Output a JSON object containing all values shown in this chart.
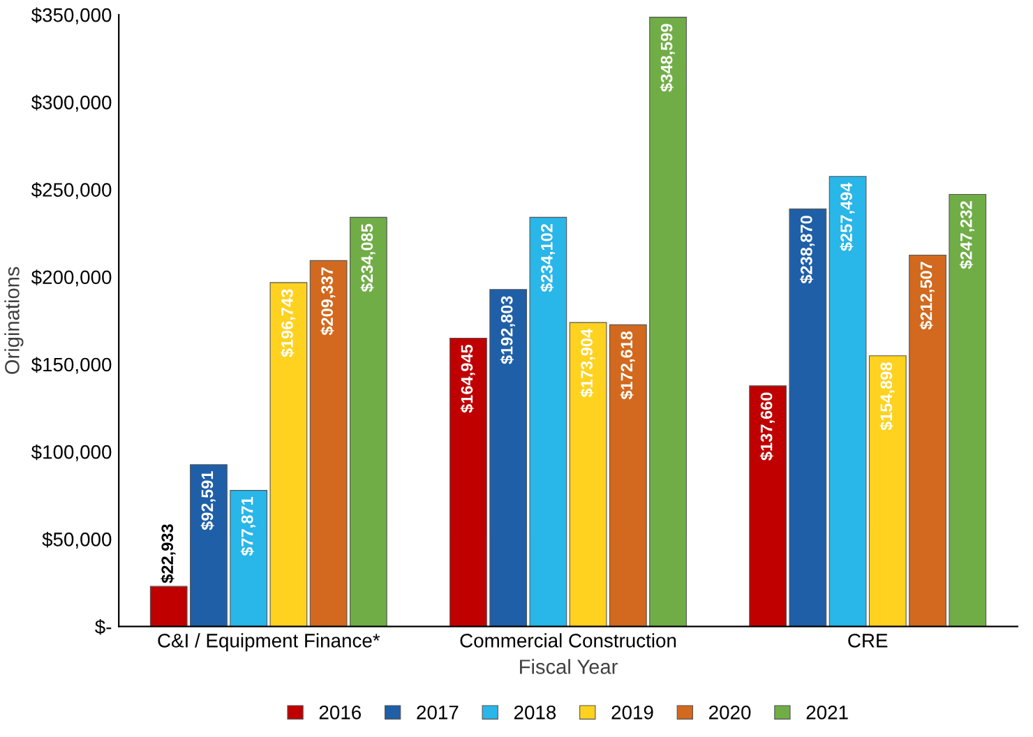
{
  "chart_data": {
    "type": "bar",
    "xlabel": "Fiscal Year",
    "ylabel": "Originations",
    "categories": [
      "C&I / Equipment Finance*",
      "Commercial Construction",
      "CRE"
    ],
    "series": [
      {
        "name": "2016",
        "color": "#c00000",
        "values": [
          22933,
          164945,
          137660
        ],
        "value_labels": [
          "$22,933",
          "$164,945",
          "$137,660"
        ]
      },
      {
        "name": "2017",
        "color": "#1f5fa8",
        "values": [
          92591,
          192803,
          238870
        ],
        "value_labels": [
          "$92,591",
          "$192,803",
          "$238,870"
        ]
      },
      {
        "name": "2018",
        "color": "#29b6e8",
        "values": [
          77871,
          234102,
          257494
        ],
        "value_labels": [
          "$77,871",
          "$234,102",
          "$257,494"
        ]
      },
      {
        "name": "2019",
        "color": "#ffd21f",
        "values": [
          196743,
          173904,
          154898
        ],
        "value_labels": [
          "$196,743",
          "$173,904",
          "$154,898"
        ]
      },
      {
        "name": "2020",
        "color": "#d2691e",
        "values": [
          209337,
          172618,
          212507
        ],
        "value_labels": [
          "$209,337",
          "$172,618",
          "$212,507"
        ]
      },
      {
        "name": "2021",
        "color": "#70ad47",
        "values": [
          234085,
          348599,
          247232
        ],
        "value_labels": [
          "$234,085",
          "$348,599",
          "$247,232"
        ]
      }
    ],
    "ylim": [
      0,
      350000
    ],
    "yticks": [
      {
        "value": 0,
        "label": "$-"
      },
      {
        "value": 50000,
        "label": "$50,000"
      },
      {
        "value": 100000,
        "label": "$100,000"
      },
      {
        "value": 150000,
        "label": "$150,000"
      },
      {
        "value": 200000,
        "label": "$200,000"
      },
      {
        "value": 250000,
        "label": "$250,000"
      },
      {
        "value": 300000,
        "label": "$300,000"
      },
      {
        "value": 350000,
        "label": "$350,000"
      }
    ],
    "grid": false,
    "legend": "bottom"
  }
}
